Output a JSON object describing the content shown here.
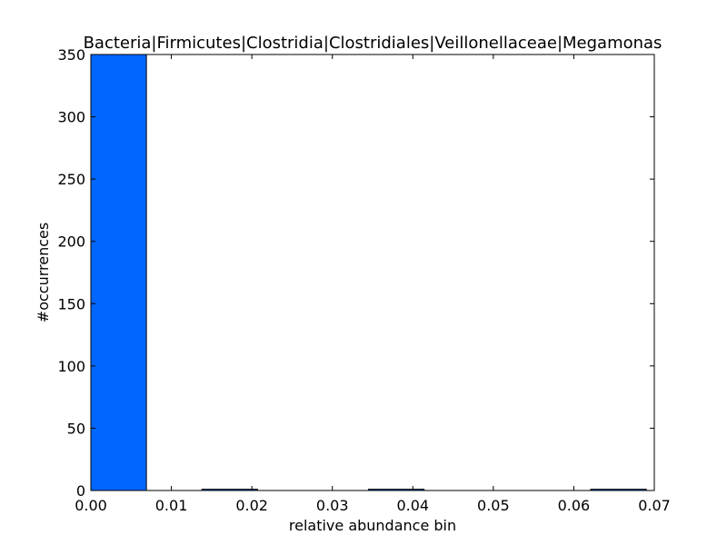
{
  "chart_data": {
    "type": "bar",
    "title": "Bacteria|Firmicutes|Clostridia|Clostridiales|Veillonellaceae|Megamonas",
    "xlabel": "relative abundance bin",
    "ylabel": "#occurrences",
    "xlim": [
      0.0,
      0.07
    ],
    "ylim": [
      0,
      350
    ],
    "x_ticks": [
      "0.00",
      "0.01",
      "0.02",
      "0.03",
      "0.04",
      "0.05",
      "0.06",
      "0.07"
    ],
    "y_ticks": [
      "0",
      "50",
      "100",
      "150",
      "200",
      "250",
      "300",
      "350"
    ],
    "bar_width": 0.0069,
    "bins": [
      0.0,
      0.0069,
      0.0138,
      0.0207,
      0.0276,
      0.0345,
      0.0414,
      0.0483,
      0.0552,
      0.0621
    ],
    "values": [
      355,
      0,
      1,
      0,
      0,
      1,
      0,
      0,
      0,
      1
    ],
    "bar_color": "#0066ff",
    "grid": false
  }
}
